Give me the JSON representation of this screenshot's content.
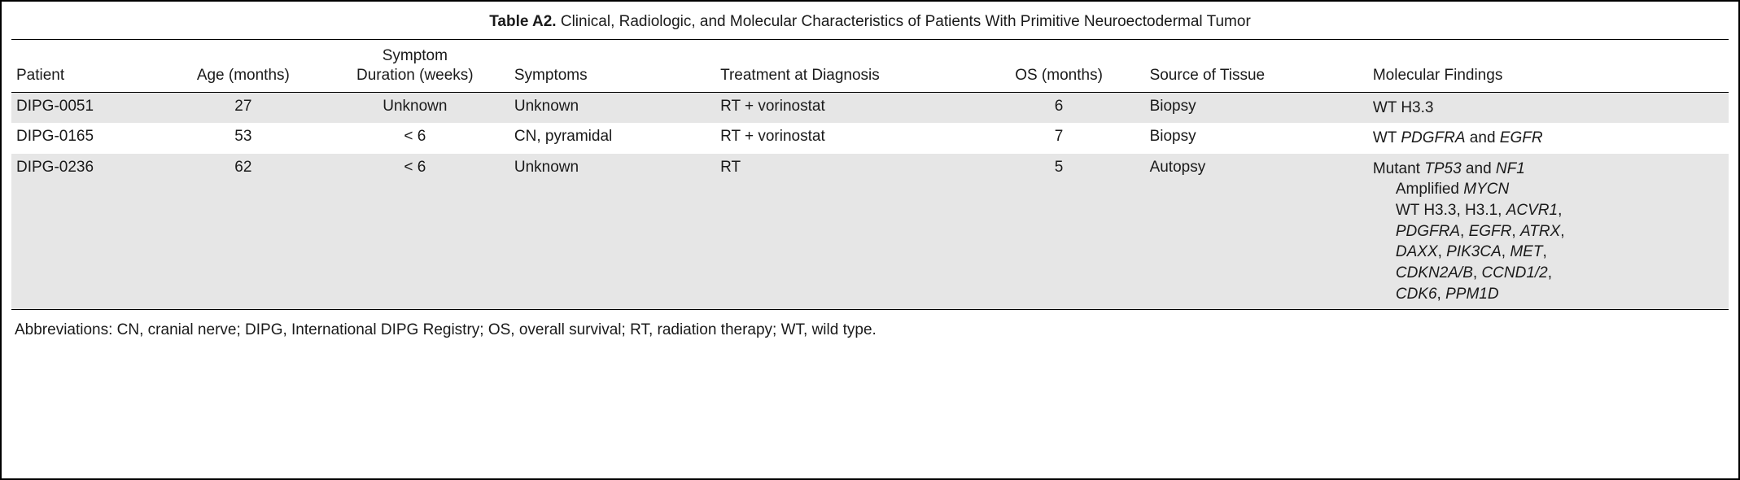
{
  "title": {
    "label": "Table A2.",
    "description": "Clinical, Radiologic, and Molecular Characteristics of Patients With Primitive Neuroectodermal Tumor"
  },
  "columns": {
    "patient": "Patient",
    "age": "Age (months)",
    "symdur_line1": "Symptom",
    "symdur_line2": "Duration (weeks)",
    "symptoms": "Symptoms",
    "treatment": "Treatment at Diagnosis",
    "os": "OS (months)",
    "source": "Source of Tissue",
    "molecular": "Molecular Findings"
  },
  "rows": {
    "r0": {
      "patient": "DIPG-0051",
      "age": "27",
      "symdur": "Unknown",
      "symptoms": "Unknown",
      "treatment": "RT + vorinostat",
      "os": "6",
      "source": "Biopsy",
      "mol_plain": "WT H3.3"
    },
    "r1": {
      "patient": "DIPG-0165",
      "age": "53",
      "symdur": "< 6",
      "symptoms": "CN, pyramidal",
      "treatment": "RT + vorinostat",
      "os": "7",
      "source": "Biopsy",
      "mol_prefix": "WT ",
      "mol_gene1": "PDGFRA",
      "mol_mid": " and ",
      "mol_gene2": "EGFR"
    },
    "r2": {
      "patient": "DIPG-0236",
      "age": "62",
      "symdur": "< 6",
      "symptoms": "Unknown",
      "treatment": "RT",
      "os": "5",
      "source": "Autopsy",
      "l1_prefix": "Mutant ",
      "l1_g1": "TP53",
      "l1_mid": " and ",
      "l1_g2": "NF1",
      "l2_prefix": "Amplified ",
      "l2_g1": "MYCN",
      "l3_prefix": "WT H3.3, H3.1, ",
      "l3_g1": "ACVR1",
      "l3_suffix": ",",
      "l4_g1": "PDGFRA",
      "l4_s1": ", ",
      "l4_g2": "EGFR",
      "l4_s2": ", ",
      "l4_g3": "ATRX",
      "l4_s3": ",",
      "l5_g1": "DAXX",
      "l5_s1": ", ",
      "l5_g2": "PIK3CA",
      "l5_s2": ", ",
      "l5_g3": "MET",
      "l5_s3": ",",
      "l6_g1": "CDKN2A/B",
      "l6_s1": ", ",
      "l6_g2": "CCND1/2",
      "l6_s2": ",",
      "l7_g1": "CDK6",
      "l7_s1": ", ",
      "l7_g2": "PPM1D"
    }
  },
  "abbrev": "Abbreviations: CN, cranial nerve; DIPG, International DIPG Registry; OS, overall survival; RT, radiation therapy; WT, wild type."
}
